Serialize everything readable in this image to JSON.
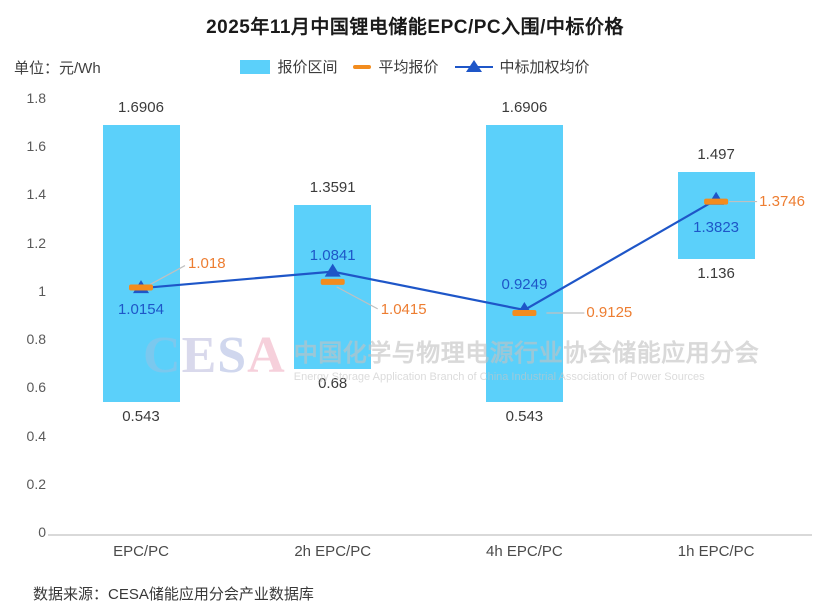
{
  "title": "2025年11月中国锂电储能EPC/PC入围/中标价格",
  "unit_label": "单位：元/Wh",
  "legend": {
    "range_label": "报价区间",
    "avg_label": "平均报价",
    "weighted_label": "中标加权均价"
  },
  "watermark": {
    "logo": "CESA",
    "cn": "中国化学与物理电源行业协会储能应用分会",
    "en": "Energy Storage Application Branch of China Industrial Association of Power Sources"
  },
  "source": "数据来源：CESA储能应用分会产业数据库",
  "colors": {
    "bar": "#5bd0fa",
    "avg_marker": "#f28c1e",
    "avg_text": "#ed7d31",
    "weighted": "#1e56c8",
    "leader": "#c0c0c0",
    "axis": "#d9d9d9"
  },
  "chart_data": {
    "type": "bar",
    "subtype": "floating-range-bars-with-line",
    "categories": [
      "EPC/PC",
      "2h EPC/PC",
      "4h EPC/PC",
      "1h EPC/PC"
    ],
    "series": [
      {
        "name": "报价区间",
        "type": "range_bar",
        "low": [
          0.543,
          0.68,
          0.543,
          1.136
        ],
        "high": [
          1.6906,
          1.3591,
          1.6906,
          1.497
        ]
      },
      {
        "name": "平均报价",
        "type": "dash_marker",
        "values": [
          1.018,
          1.0415,
          0.9125,
          1.3746
        ]
      },
      {
        "name": "中标加权均价",
        "type": "line_triangle",
        "values": [
          1.0154,
          1.0841,
          0.9249,
          1.3823
        ]
      }
    ],
    "title": "2025年11月中国锂电储能EPC/PC入围/中标价格",
    "ylabel": "元/Wh",
    "ylim": [
      0,
      1.8
    ],
    "ytick_step": 0.2,
    "grid": false,
    "legend_position": "top"
  }
}
